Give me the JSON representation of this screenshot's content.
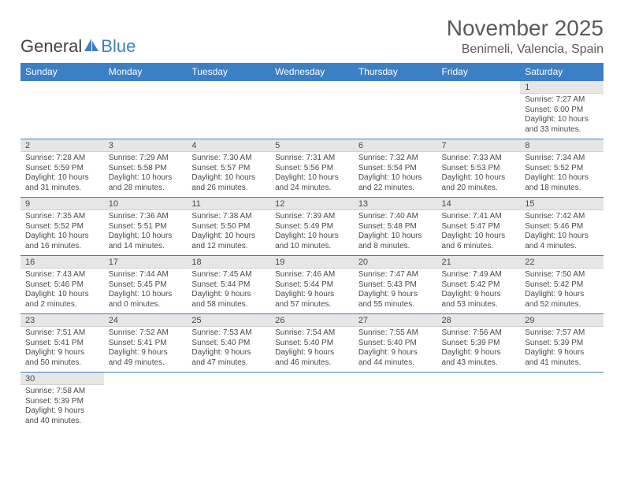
{
  "logo": {
    "word1": "General",
    "word2": "Blue",
    "sail_color": "#3b7fc4"
  },
  "title": "November 2025",
  "location": "Benimeli, Valencia, Spain",
  "colors": {
    "header_bg": "#3b7fc4",
    "header_text": "#ffffff",
    "daynum_bg": "#e6e6e6",
    "row_border": "#3b7fc4",
    "text": "#4a4a4a"
  },
  "day_headers": [
    "Sunday",
    "Monday",
    "Tuesday",
    "Wednesday",
    "Thursday",
    "Friday",
    "Saturday"
  ],
  "weeks": [
    [
      null,
      null,
      null,
      null,
      null,
      null,
      {
        "n": "1",
        "sr": "Sunrise: 7:27 AM",
        "ss": "Sunset: 6:00 PM",
        "dl": "Daylight: 10 hours and 33 minutes."
      }
    ],
    [
      {
        "n": "2",
        "sr": "Sunrise: 7:28 AM",
        "ss": "Sunset: 5:59 PM",
        "dl": "Daylight: 10 hours and 31 minutes."
      },
      {
        "n": "3",
        "sr": "Sunrise: 7:29 AM",
        "ss": "Sunset: 5:58 PM",
        "dl": "Daylight: 10 hours and 28 minutes."
      },
      {
        "n": "4",
        "sr": "Sunrise: 7:30 AM",
        "ss": "Sunset: 5:57 PM",
        "dl": "Daylight: 10 hours and 26 minutes."
      },
      {
        "n": "5",
        "sr": "Sunrise: 7:31 AM",
        "ss": "Sunset: 5:56 PM",
        "dl": "Daylight: 10 hours and 24 minutes."
      },
      {
        "n": "6",
        "sr": "Sunrise: 7:32 AM",
        "ss": "Sunset: 5:54 PM",
        "dl": "Daylight: 10 hours and 22 minutes."
      },
      {
        "n": "7",
        "sr": "Sunrise: 7:33 AM",
        "ss": "Sunset: 5:53 PM",
        "dl": "Daylight: 10 hours and 20 minutes."
      },
      {
        "n": "8",
        "sr": "Sunrise: 7:34 AM",
        "ss": "Sunset: 5:52 PM",
        "dl": "Daylight: 10 hours and 18 minutes."
      }
    ],
    [
      {
        "n": "9",
        "sr": "Sunrise: 7:35 AM",
        "ss": "Sunset: 5:52 PM",
        "dl": "Daylight: 10 hours and 16 minutes."
      },
      {
        "n": "10",
        "sr": "Sunrise: 7:36 AM",
        "ss": "Sunset: 5:51 PM",
        "dl": "Daylight: 10 hours and 14 minutes."
      },
      {
        "n": "11",
        "sr": "Sunrise: 7:38 AM",
        "ss": "Sunset: 5:50 PM",
        "dl": "Daylight: 10 hours and 12 minutes."
      },
      {
        "n": "12",
        "sr": "Sunrise: 7:39 AM",
        "ss": "Sunset: 5:49 PM",
        "dl": "Daylight: 10 hours and 10 minutes."
      },
      {
        "n": "13",
        "sr": "Sunrise: 7:40 AM",
        "ss": "Sunset: 5:48 PM",
        "dl": "Daylight: 10 hours and 8 minutes."
      },
      {
        "n": "14",
        "sr": "Sunrise: 7:41 AM",
        "ss": "Sunset: 5:47 PM",
        "dl": "Daylight: 10 hours and 6 minutes."
      },
      {
        "n": "15",
        "sr": "Sunrise: 7:42 AM",
        "ss": "Sunset: 5:46 PM",
        "dl": "Daylight: 10 hours and 4 minutes."
      }
    ],
    [
      {
        "n": "16",
        "sr": "Sunrise: 7:43 AM",
        "ss": "Sunset: 5:46 PM",
        "dl": "Daylight: 10 hours and 2 minutes."
      },
      {
        "n": "17",
        "sr": "Sunrise: 7:44 AM",
        "ss": "Sunset: 5:45 PM",
        "dl": "Daylight: 10 hours and 0 minutes."
      },
      {
        "n": "18",
        "sr": "Sunrise: 7:45 AM",
        "ss": "Sunset: 5:44 PM",
        "dl": "Daylight: 9 hours and 58 minutes."
      },
      {
        "n": "19",
        "sr": "Sunrise: 7:46 AM",
        "ss": "Sunset: 5:44 PM",
        "dl": "Daylight: 9 hours and 57 minutes."
      },
      {
        "n": "20",
        "sr": "Sunrise: 7:47 AM",
        "ss": "Sunset: 5:43 PM",
        "dl": "Daylight: 9 hours and 55 minutes."
      },
      {
        "n": "21",
        "sr": "Sunrise: 7:49 AM",
        "ss": "Sunset: 5:42 PM",
        "dl": "Daylight: 9 hours and 53 minutes."
      },
      {
        "n": "22",
        "sr": "Sunrise: 7:50 AM",
        "ss": "Sunset: 5:42 PM",
        "dl": "Daylight: 9 hours and 52 minutes."
      }
    ],
    [
      {
        "n": "23",
        "sr": "Sunrise: 7:51 AM",
        "ss": "Sunset: 5:41 PM",
        "dl": "Daylight: 9 hours and 50 minutes."
      },
      {
        "n": "24",
        "sr": "Sunrise: 7:52 AM",
        "ss": "Sunset: 5:41 PM",
        "dl": "Daylight: 9 hours and 49 minutes."
      },
      {
        "n": "25",
        "sr": "Sunrise: 7:53 AM",
        "ss": "Sunset: 5:40 PM",
        "dl": "Daylight: 9 hours and 47 minutes."
      },
      {
        "n": "26",
        "sr": "Sunrise: 7:54 AM",
        "ss": "Sunset: 5:40 PM",
        "dl": "Daylight: 9 hours and 46 minutes."
      },
      {
        "n": "27",
        "sr": "Sunrise: 7:55 AM",
        "ss": "Sunset: 5:40 PM",
        "dl": "Daylight: 9 hours and 44 minutes."
      },
      {
        "n": "28",
        "sr": "Sunrise: 7:56 AM",
        "ss": "Sunset: 5:39 PM",
        "dl": "Daylight: 9 hours and 43 minutes."
      },
      {
        "n": "29",
        "sr": "Sunrise: 7:57 AM",
        "ss": "Sunset: 5:39 PM",
        "dl": "Daylight: 9 hours and 41 minutes."
      }
    ],
    [
      {
        "n": "30",
        "sr": "Sunrise: 7:58 AM",
        "ss": "Sunset: 5:39 PM",
        "dl": "Daylight: 9 hours and 40 minutes."
      },
      null,
      null,
      null,
      null,
      null,
      null
    ]
  ]
}
